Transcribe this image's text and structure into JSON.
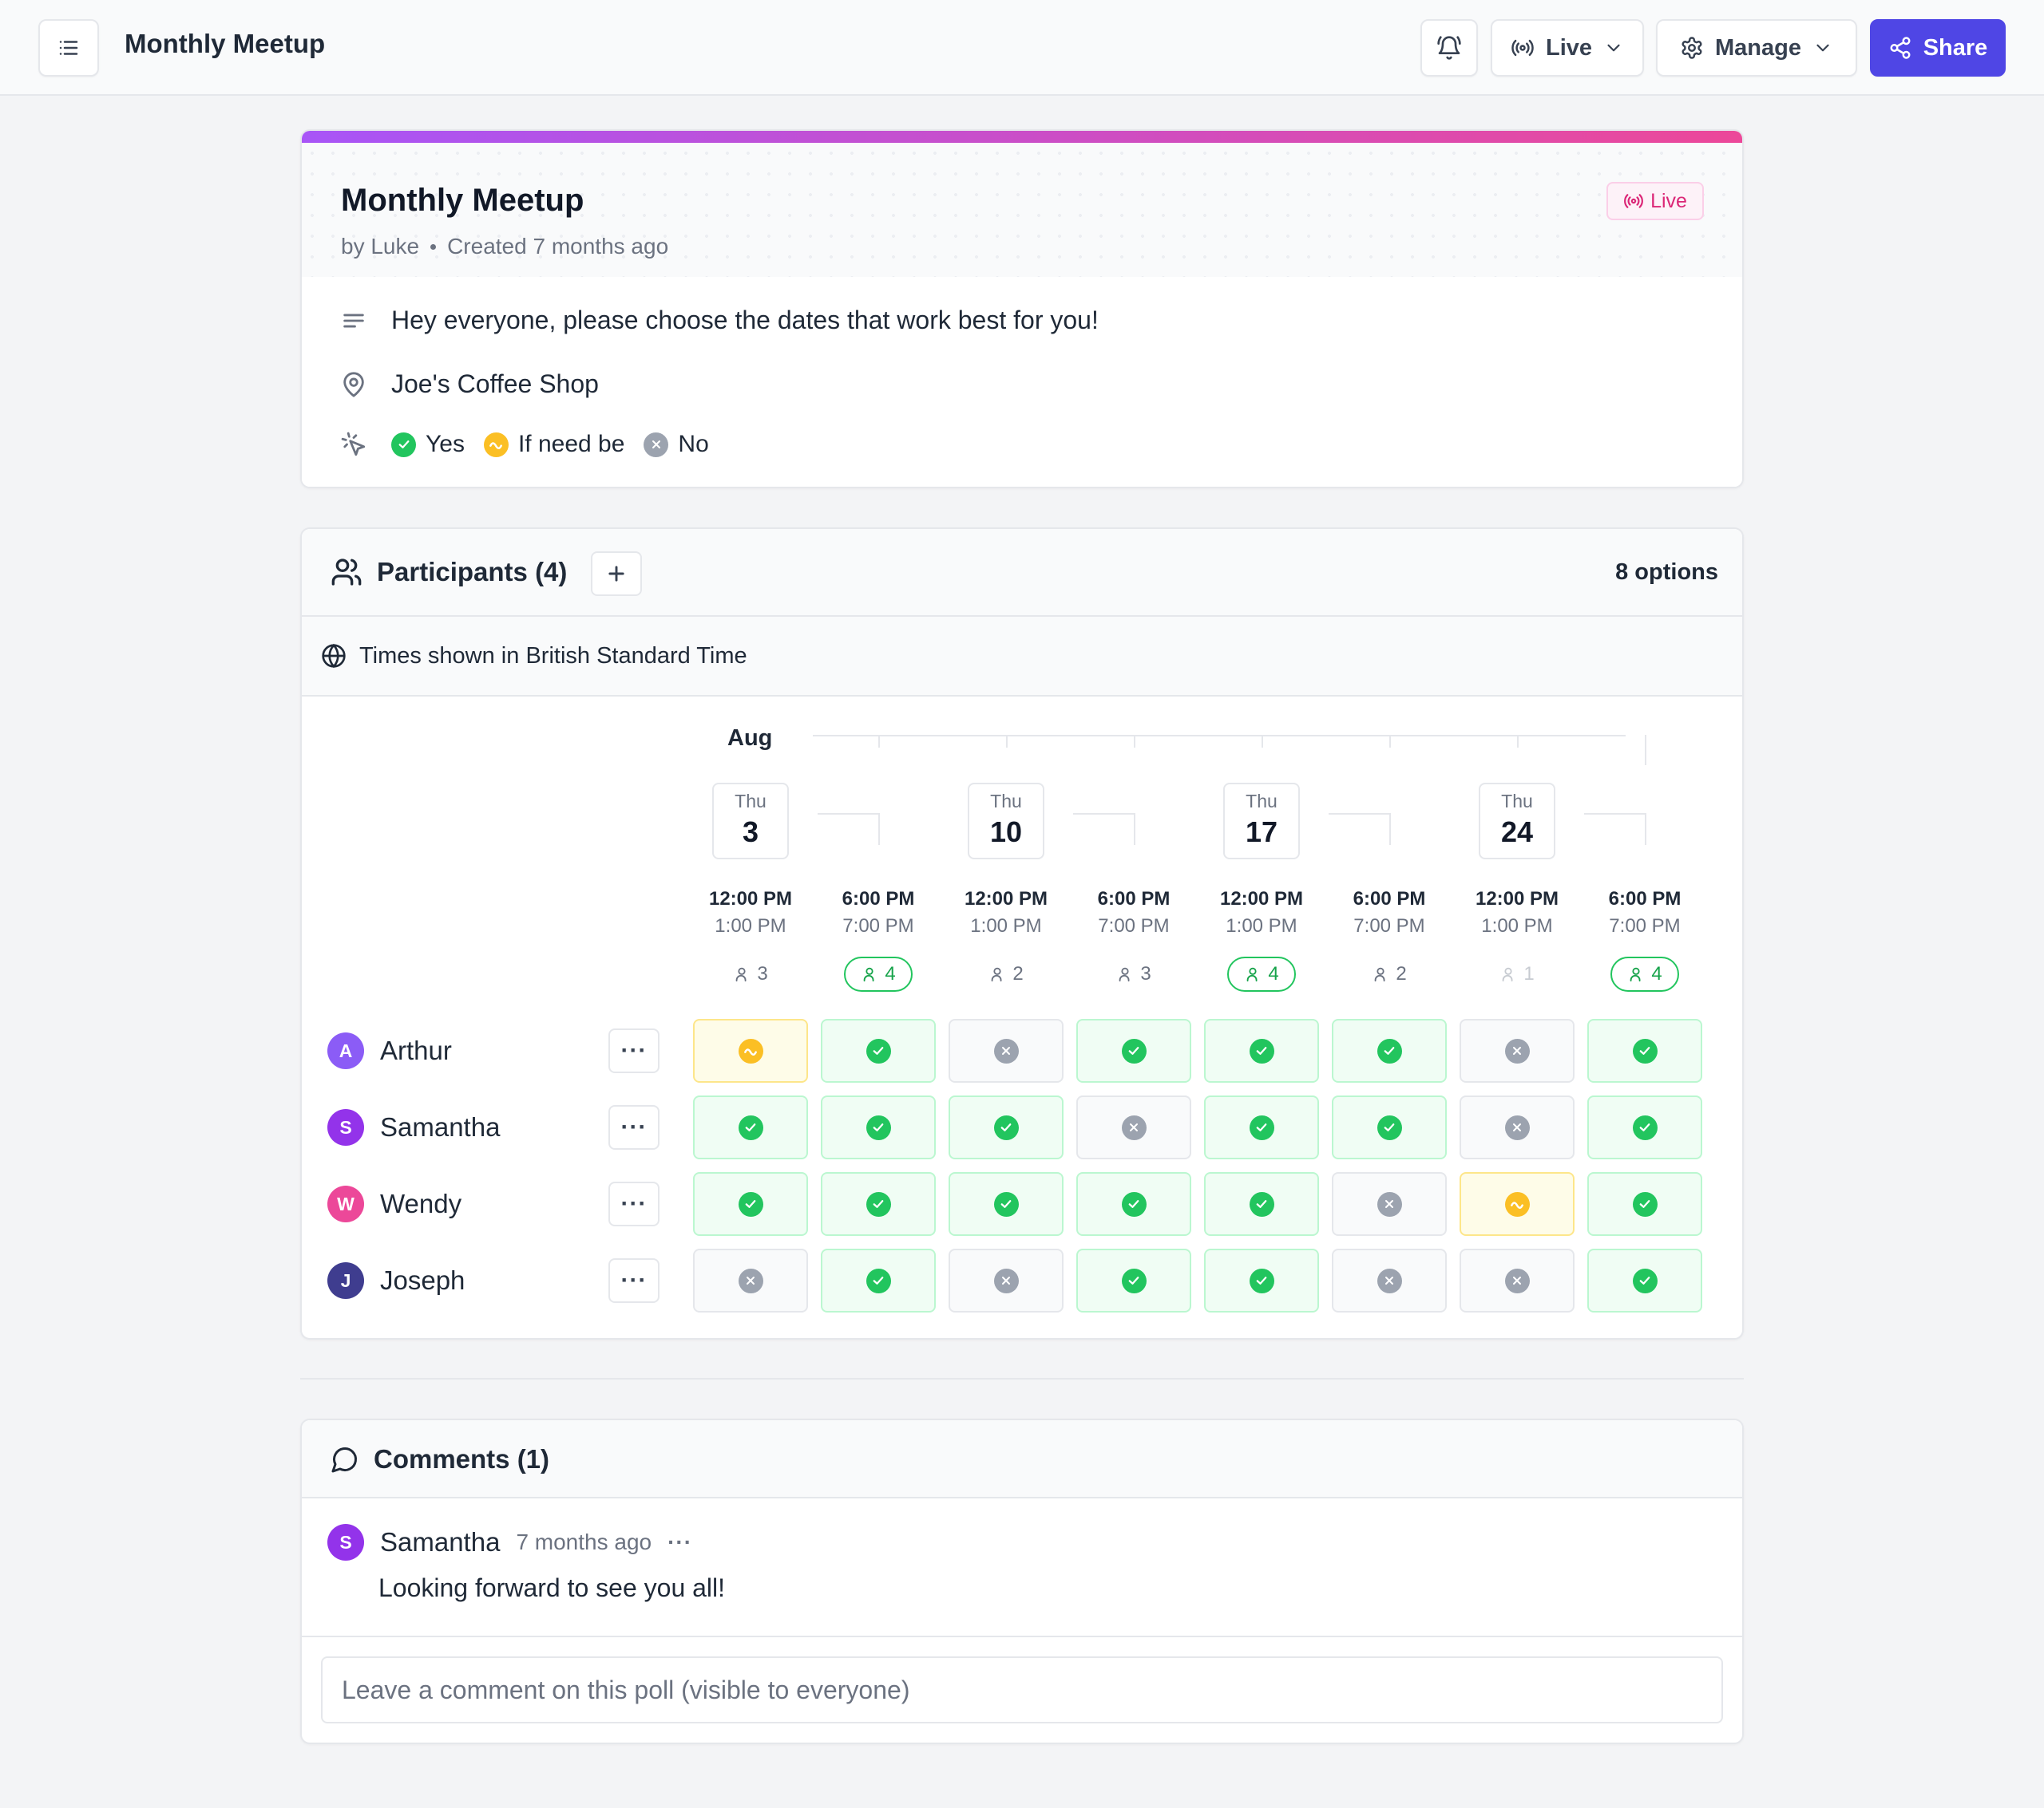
{
  "topbar": {
    "title": "Monthly Meetup",
    "live_label": "Live",
    "manage_label": "Manage",
    "share_label": "Share"
  },
  "poll": {
    "title": "Monthly Meetup",
    "author": "by Luke",
    "created": "Created 7 months ago",
    "status": "Live",
    "description": "Hey everyone, please choose the dates that work best for you!",
    "location": "Joe's Coffee Shop",
    "legend": {
      "yes": "Yes",
      "if_need_be": "If need be",
      "no": "No"
    }
  },
  "participants": {
    "title": "Participants (4)",
    "options_count": "8 options",
    "timezone_note": "Times shown in British Standard Time",
    "month": "Aug",
    "dates": [
      {
        "dow": "Thu",
        "day": "3"
      },
      {
        "dow": "Thu",
        "day": "10"
      },
      {
        "dow": "Thu",
        "day": "17"
      },
      {
        "dow": "Thu",
        "day": "24"
      }
    ],
    "options": [
      {
        "start": "12:00 PM",
        "end": "1:00 PM",
        "count": "3",
        "top": false,
        "faint": false
      },
      {
        "start": "6:00 PM",
        "end": "7:00 PM",
        "count": "4",
        "top": true,
        "faint": false
      },
      {
        "start": "12:00 PM",
        "end": "1:00 PM",
        "count": "2",
        "top": false,
        "faint": false
      },
      {
        "start": "6:00 PM",
        "end": "7:00 PM",
        "count": "3",
        "top": false,
        "faint": false
      },
      {
        "start": "12:00 PM",
        "end": "1:00 PM",
        "count": "4",
        "top": true,
        "faint": false
      },
      {
        "start": "6:00 PM",
        "end": "7:00 PM",
        "count": "2",
        "top": false,
        "faint": false
      },
      {
        "start": "12:00 PM",
        "end": "1:00 PM",
        "count": "1",
        "top": false,
        "faint": true
      },
      {
        "start": "6:00 PM",
        "end": "7:00 PM",
        "count": "4",
        "top": true,
        "faint": false
      }
    ],
    "people": [
      {
        "initial": "A",
        "name": "Arthur",
        "color": "#8b5cf6",
        "votes": [
          "ifneed",
          "yes",
          "no",
          "yes",
          "yes",
          "yes",
          "no",
          "yes"
        ]
      },
      {
        "initial": "S",
        "name": "Samantha",
        "color": "#9333ea",
        "votes": [
          "yes",
          "yes",
          "yes",
          "no",
          "yes",
          "yes",
          "no",
          "yes"
        ]
      },
      {
        "initial": "W",
        "name": "Wendy",
        "color": "#ec4899",
        "votes": [
          "yes",
          "yes",
          "yes",
          "yes",
          "yes",
          "no",
          "ifneed",
          "yes"
        ]
      },
      {
        "initial": "J",
        "name": "Joseph",
        "color": "#3f3d8f",
        "votes": [
          "no",
          "yes",
          "no",
          "yes",
          "yes",
          "no",
          "no",
          "yes"
        ]
      }
    ],
    "more_label": "···"
  },
  "comments": {
    "title": "Comments (1)",
    "items": [
      {
        "initial": "S",
        "author": "Samantha",
        "color": "#9333ea",
        "time": "7 months ago",
        "text": "Looking forward to see you all!"
      }
    ],
    "more_label": "···",
    "input_placeholder": "Leave a comment on this poll (visible to everyone)"
  },
  "colors": {
    "accent": "#4f46e5",
    "yes": "#22c55e",
    "if_need_be": "#fbbf24",
    "no": "#9ca3af",
    "live": "#db2777"
  }
}
